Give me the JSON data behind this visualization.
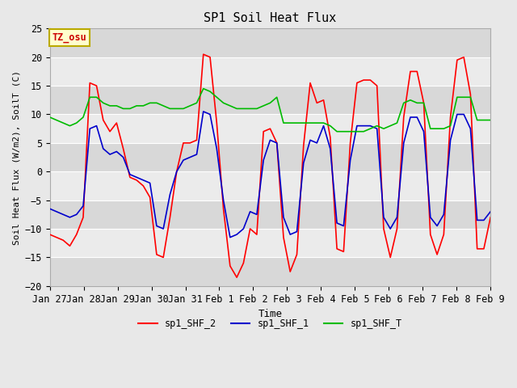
{
  "title": "SP1 Soil Heat Flux",
  "xlabel": "Time",
  "ylabel": "Soil Heat Flux (W/m2), SoilT (C)",
  "ylim": [
    -20,
    25
  ],
  "outer_bg": "#e8e8e8",
  "plot_bg_light": "#ebebeb",
  "plot_bg_dark": "#d8d8d8",
  "grid_color": "#ffffff",
  "tz_label": "TZ_osu",
  "tz_box_color": "#ffffcc",
  "tz_border_color": "#bbaa00",
  "tz_text_color": "#cc0000",
  "legend_labels": [
    "sp1_SHF_2",
    "sp1_SHF_1",
    "sp1_SHF_T"
  ],
  "line_colors": [
    "#ff0000",
    "#0000cc",
    "#00bb00"
  ],
  "line_width": 1.2,
  "x_tick_labels": [
    "Jan 27",
    "Jan 28",
    "Jan 29",
    "Jan 30",
    "Jan 31",
    "Feb 1",
    "Feb 2",
    "Feb 3",
    "Feb 4",
    "Feb 5",
    "Feb 6",
    "Feb 7",
    "Feb 8",
    "Feb 9"
  ],
  "num_days": 13,
  "yticks": [
    -20,
    -15,
    -10,
    -5,
    0,
    5,
    10,
    15,
    20,
    25
  ],
  "sp1_SHF_2": [
    -11,
    -11.5,
    -12,
    -13,
    -11,
    -8,
    15.5,
    15,
    9,
    7,
    8.5,
    4,
    -1,
    -1.5,
    -2.5,
    -4.5,
    -14.5,
    -15,
    -8,
    0,
    5,
    5,
    5.5,
    20.5,
    20,
    8.5,
    -6.5,
    -16.5,
    -18.5,
    -16,
    -10,
    -11,
    7,
    7.5,
    5,
    -11.5,
    -17.5,
    -14.5,
    4.5,
    15.5,
    12,
    12.5,
    6,
    -13.5,
    -14,
    5,
    15.5,
    16,
    16,
    15,
    -10,
    -15,
    -10,
    9.5,
    17.5,
    17.5,
    12,
    -11,
    -14.5,
    -11,
    9.5,
    19.5,
    20,
    13.5,
    -13.5,
    -13.5,
    -8
  ],
  "sp1_SHF_1": [
    -6.5,
    -7,
    -7.5,
    -8,
    -7.5,
    -6,
    7.5,
    8,
    4,
    3,
    3.5,
    2.5,
    -0.5,
    -1,
    -1.5,
    -2,
    -9.5,
    -10,
    -4,
    0,
    2,
    2.5,
    3,
    10.5,
    10,
    4,
    -5,
    -11.5,
    -11,
    -10,
    -7,
    -7.5,
    2,
    5.5,
    5,
    -8,
    -11,
    -10.5,
    1.5,
    5.5,
    5,
    8,
    4,
    -9,
    -9.5,
    2,
    8,
    8,
    8,
    7.5,
    -8,
    -10,
    -8,
    5,
    9.5,
    9.5,
    7,
    -8,
    -9.5,
    -7.5,
    5.5,
    10,
    10,
    7.5,
    -8.5,
    -8.5,
    -7
  ],
  "sp1_SHF_T": [
    9.5,
    9,
    8.5,
    8,
    8.5,
    9.5,
    13,
    13,
    12,
    11.5,
    11.5,
    11,
    11,
    11.5,
    11.5,
    12,
    12,
    11.5,
    11,
    11,
    11,
    11.5,
    12,
    14.5,
    14,
    13,
    12,
    11.5,
    11,
    11,
    11,
    11,
    11.5,
    12,
    13,
    8.5,
    8.5,
    8.5,
    8.5,
    8.5,
    8.5,
    8.5,
    8,
    7,
    7,
    7,
    7,
    7,
    7.5,
    8,
    7.5,
    8,
    8.5,
    12,
    12.5,
    12,
    12,
    7.5,
    7.5,
    7.5,
    8,
    13,
    13,
    13,
    9,
    9,
    9
  ]
}
